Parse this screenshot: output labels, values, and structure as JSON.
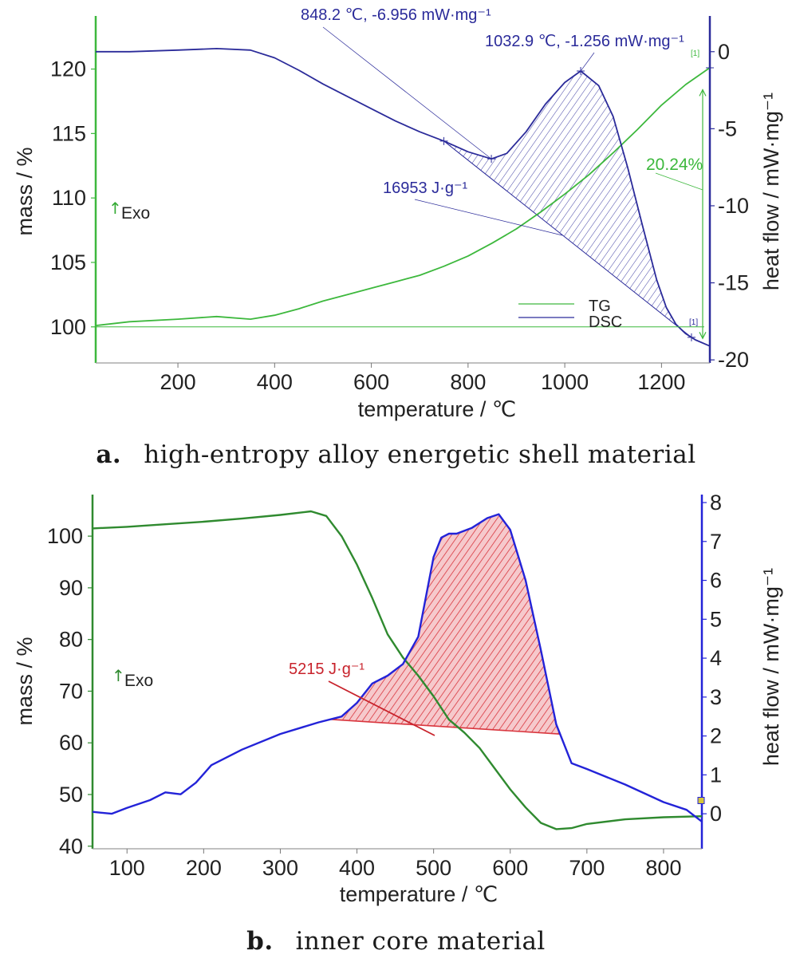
{
  "captions": {
    "a_letter": "a.",
    "a_text": "high-entropy alloy energetic shell material",
    "b_letter": "b.",
    "b_text": "inner core material"
  },
  "exo_label": "Exo",
  "colors": {
    "tg": "#3db83d",
    "dsc": "#2b2b9a",
    "dsc_b": "#2323d8",
    "tg_b": "#2f8a2f",
    "area_b": "#d9363e",
    "text_b_ann": "#c8232c"
  },
  "chart_data": [
    {
      "type": "line",
      "xlabel": "temperature / ℃",
      "ylabel": "mass / %",
      "y2label": "heat flow / mW·mg⁻¹",
      "xlim": [
        30,
        1300
      ],
      "ylim": [
        97.2,
        123.5
      ],
      "y2lim": [
        -20.2,
        1.8
      ],
      "xticks": [
        200,
        400,
        600,
        800,
        1000,
        1200
      ],
      "yticks": [
        100,
        105,
        110,
        115,
        120
      ],
      "y2ticks": [
        0,
        -5,
        -10,
        -15,
        -20
      ],
      "legend": [
        "TG",
        "DSC"
      ],
      "series": [
        {
          "name": "TG",
          "axis": "left",
          "x": [
            30,
            100,
            200,
            280,
            350,
            400,
            450,
            500,
            550,
            600,
            650,
            700,
            750,
            800,
            850,
            900,
            950,
            1000,
            1050,
            1100,
            1150,
            1200,
            1250,
            1300
          ],
          "y": [
            100.1,
            100.4,
            100.6,
            100.8,
            100.6,
            100.9,
            101.4,
            102.0,
            102.5,
            103.0,
            103.5,
            104.0,
            104.7,
            105.5,
            106.5,
            107.6,
            108.9,
            110.3,
            111.8,
            113.5,
            115.3,
            117.2,
            118.8,
            120.1
          ]
        },
        {
          "name": "DSC",
          "axis": "right",
          "x": [
            30,
            100,
            200,
            280,
            350,
            400,
            450,
            500,
            550,
            600,
            650,
            700,
            750,
            800,
            848.2,
            880,
            920,
            960,
            1000,
            1032.9,
            1070,
            1100,
            1130,
            1160,
            1190,
            1210,
            1230,
            1250,
            1270,
            1300
          ],
          "y": [
            0.0,
            0.0,
            0.1,
            0.2,
            0.1,
            -0.4,
            -1.2,
            -2.1,
            -2.9,
            -3.7,
            -4.5,
            -5.2,
            -5.8,
            -6.5,
            -6.956,
            -6.6,
            -5.2,
            -3.4,
            -2.0,
            -1.256,
            -2.2,
            -4.2,
            -7.5,
            -11.2,
            -14.8,
            -16.6,
            -17.7,
            -18.3,
            -18.7,
            -19.1
          ]
        }
      ],
      "annotations": {
        "peak1": "848.2 ℃, -6.956 mW·mg⁻¹",
        "peak2": "1032.9 ℃, -1.256 mW·mg⁻¹",
        "area": "16953 J·g⁻¹",
        "mass_change": "20.24%",
        "marker": "[1]"
      }
    },
    {
      "type": "line",
      "xlabel": "temperature / ℃",
      "ylabel": "mass / %",
      "y2label": "heat flow / mW·mg⁻¹",
      "xlim": [
        55,
        850
      ],
      "ylim": [
        39.5,
        106.5
      ],
      "y2lim": [
        -0.9,
        8.0
      ],
      "xticks": [
        100,
        200,
        300,
        400,
        500,
        600,
        700,
        800
      ],
      "yticks": [
        40,
        50,
        60,
        70,
        80,
        90,
        100
      ],
      "y2ticks": [
        0,
        1,
        2,
        3,
        4,
        5,
        6,
        7,
        8
      ],
      "series": [
        {
          "name": "TG",
          "axis": "left",
          "x": [
            55,
            100,
            150,
            200,
            250,
            300,
            340,
            360,
            380,
            400,
            420,
            440,
            460,
            480,
            500,
            520,
            540,
            560,
            580,
            600,
            620,
            640,
            660,
            680,
            700,
            750,
            800,
            850
          ],
          "y": [
            101.5,
            101.8,
            102.3,
            102.8,
            103.4,
            104.1,
            104.8,
            103.9,
            100.0,
            94.5,
            88.0,
            81.0,
            76.5,
            73.0,
            69.0,
            64.5,
            62.0,
            59.0,
            55.0,
            51.0,
            47.5,
            44.5,
            43.3,
            43.5,
            44.3,
            45.2,
            45.6,
            45.8
          ]
        },
        {
          "name": "DSC",
          "axis": "right",
          "x": [
            55,
            80,
            100,
            130,
            150,
            170,
            190,
            210,
            250,
            300,
            350,
            380,
            400,
            420,
            440,
            460,
            480,
            500,
            510,
            520,
            530,
            550,
            570,
            585,
            600,
            620,
            640,
            660,
            680,
            700,
            750,
            800,
            830,
            850
          ],
          "y": [
            0.05,
            0.0,
            0.15,
            0.35,
            0.55,
            0.5,
            0.8,
            1.25,
            1.65,
            2.05,
            2.35,
            2.5,
            2.85,
            3.35,
            3.55,
            3.85,
            4.55,
            6.6,
            7.1,
            7.2,
            7.2,
            7.35,
            7.6,
            7.7,
            7.3,
            6.0,
            4.2,
            2.3,
            1.3,
            1.15,
            0.75,
            0.3,
            0.1,
            -0.2
          ]
        }
      ],
      "annotations": {
        "area": "5215 J·g⁻¹"
      }
    }
  ]
}
